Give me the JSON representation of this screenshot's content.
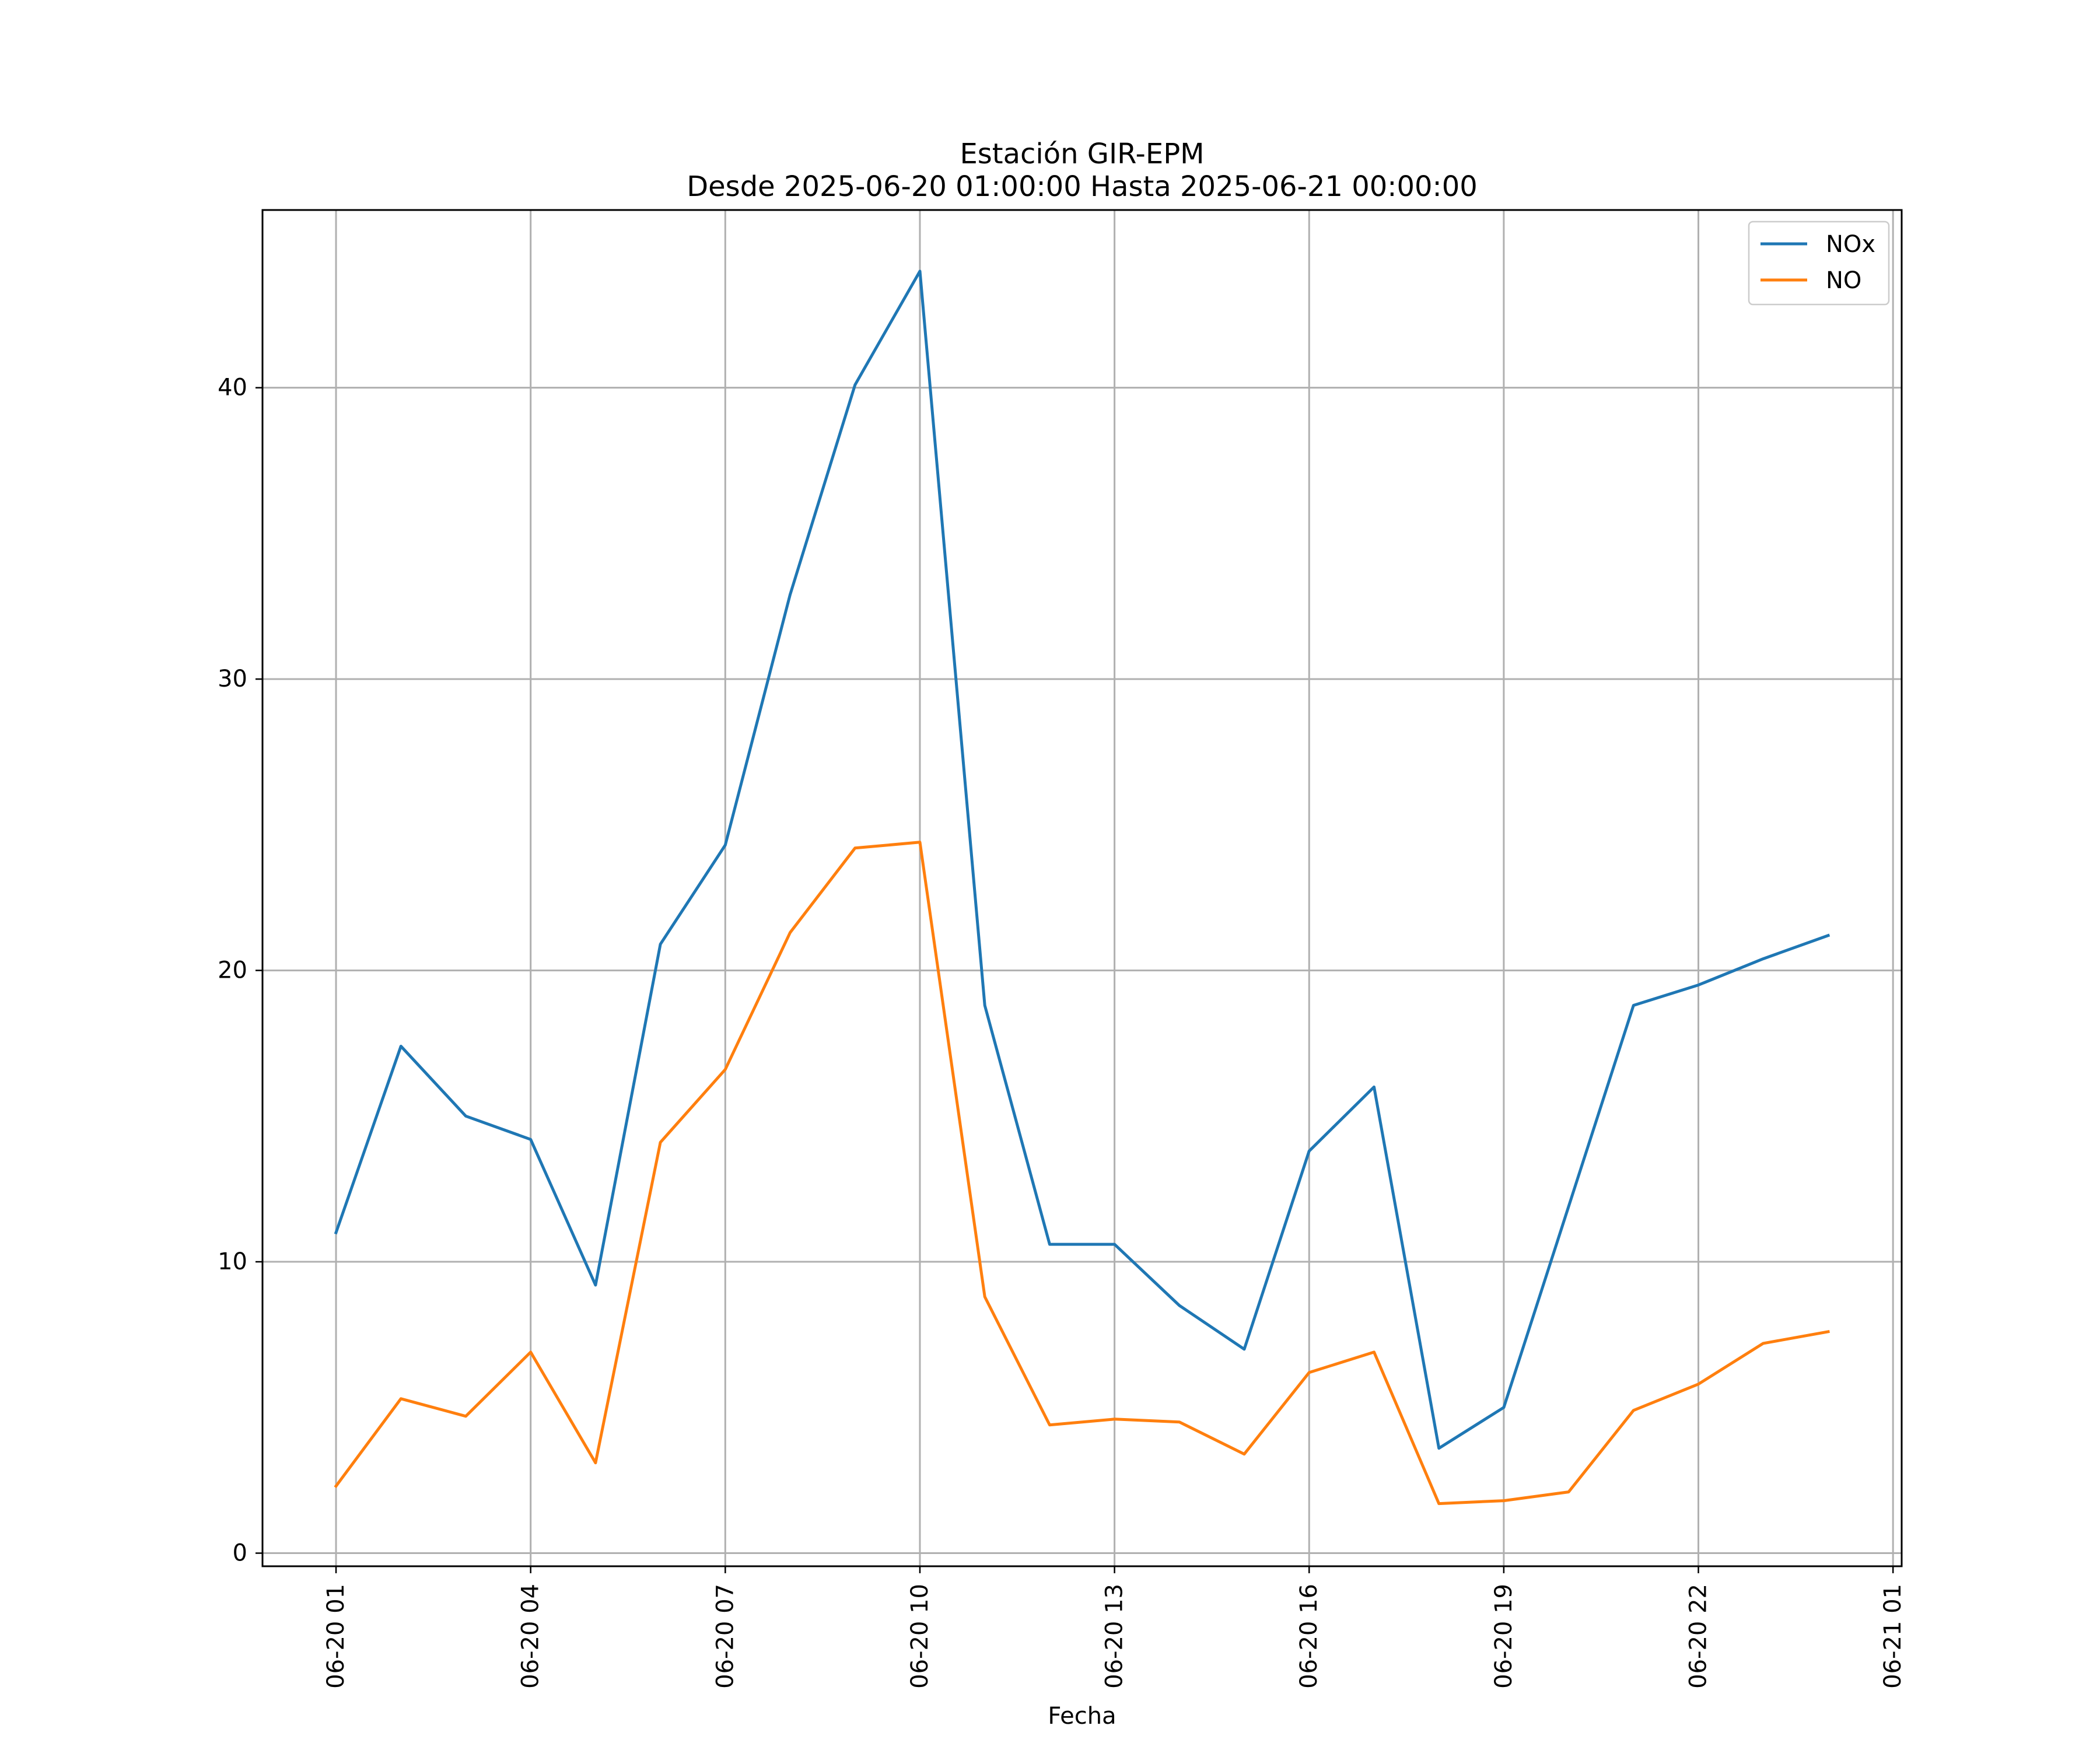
{
  "chart_data": {
    "type": "line",
    "title": "Estación GIR-EPM",
    "subtitle": "Desde 2025-06-20 01:00:00 Hasta 2025-06-21 00:00:00",
    "xlabel": "Fecha",
    "ylabel": "",
    "x": [
      "2025-06-20 01:00",
      "2025-06-20 02:00",
      "2025-06-20 03:00",
      "2025-06-20 04:00",
      "2025-06-20 05:00",
      "2025-06-20 06:00",
      "2025-06-20 07:00",
      "2025-06-20 08:00",
      "2025-06-20 09:00",
      "2025-06-20 10:00",
      "2025-06-20 11:00",
      "2025-06-20 12:00",
      "2025-06-20 13:00",
      "2025-06-20 14:00",
      "2025-06-20 15:00",
      "2025-06-20 16:00",
      "2025-06-20 17:00",
      "2025-06-20 18:00",
      "2025-06-20 19:00",
      "2025-06-20 20:00",
      "2025-06-20 21:00",
      "2025-06-20 22:00",
      "2025-06-20 23:00",
      "2025-06-21 00:00"
    ],
    "xlim": [
      "2025-06-19 23:52",
      "2025-06-21 01:08"
    ],
    "x_ticks": [
      "2025-06-20 01:00",
      "2025-06-20 04:00",
      "2025-06-20 07:00",
      "2025-06-20 10:00",
      "2025-06-20 13:00",
      "2025-06-20 16:00",
      "2025-06-20 19:00",
      "2025-06-20 22:00",
      "2025-06-21 01:00"
    ],
    "x_tick_labels": [
      "06-20 01",
      "06-20 04",
      "06-20 07",
      "06-20 10",
      "06-20 13",
      "06-20 16",
      "06-20 19",
      "06-20 22",
      "06-21 01"
    ],
    "ylim": [
      -0.45,
      46.1
    ],
    "y_ticks": [
      0,
      10,
      20,
      30,
      40
    ],
    "y_tick_labels": [
      "0",
      "10",
      "20",
      "30",
      "40"
    ],
    "grid": true,
    "legend_position": "top-right",
    "series": [
      {
        "name": "NOx",
        "color": "#1f77b4",
        "values": [
          11.0,
          17.4,
          15.0,
          14.2,
          9.2,
          20.9,
          24.3,
          32.9,
          40.1,
          44.0,
          18.8,
          10.6,
          10.6,
          8.5,
          7.0,
          13.8,
          16.0,
          3.6,
          5.0,
          11.9,
          18.8,
          19.5,
          20.4,
          21.2
        ]
      },
      {
        "name": "NO",
        "color": "#ff7f0e",
        "values": [
          2.3,
          5.3,
          4.7,
          6.9,
          3.1,
          14.1,
          16.6,
          21.3,
          24.2,
          24.4,
          8.8,
          4.4,
          4.6,
          4.5,
          3.4,
          6.2,
          6.9,
          1.7,
          1.8,
          2.1,
          4.9,
          5.8,
          7.2,
          7.6
        ]
      }
    ]
  }
}
